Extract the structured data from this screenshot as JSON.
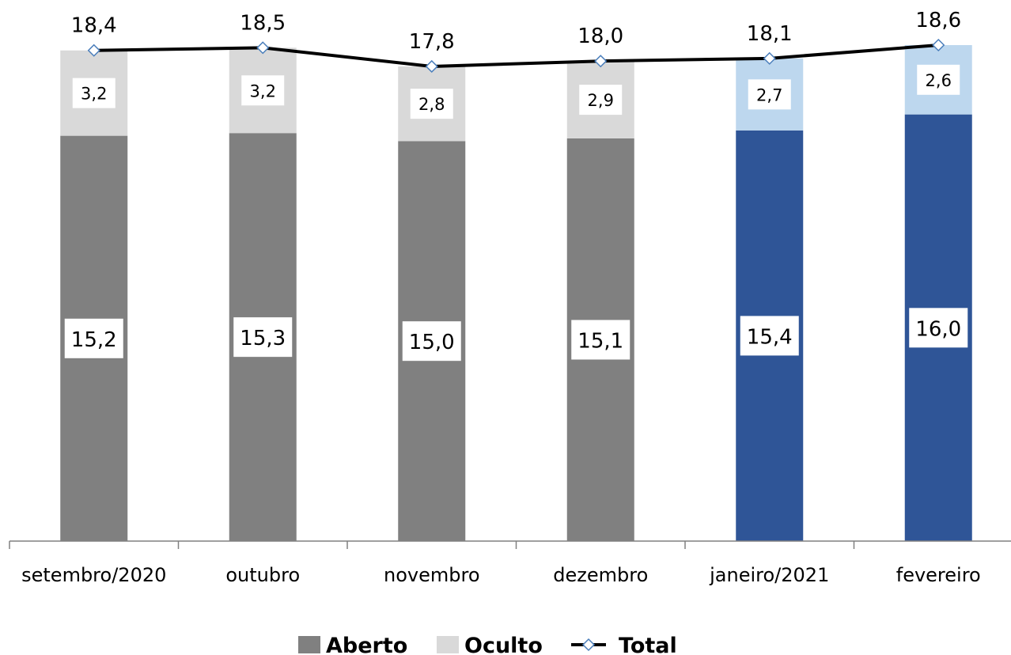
{
  "chart_data": {
    "type": "bar",
    "stacked": true,
    "categories": [
      "setembro/2020",
      "outubro",
      "novembro",
      "dezembro",
      "janeiro/2021",
      "fevereiro"
    ],
    "series": [
      {
        "name": "Aberto",
        "values": [
          15.2,
          15.3,
          15.0,
          15.1,
          15.4,
          16.0
        ],
        "labels": [
          "15,2",
          "15,3",
          "15,0",
          "15,1",
          "15,4",
          "16,0"
        ],
        "colors": [
          "#808080",
          "#808080",
          "#808080",
          "#808080",
          "#2f5597",
          "#2f5597"
        ]
      },
      {
        "name": "Oculto",
        "values": [
          3.2,
          3.2,
          2.8,
          2.9,
          2.7,
          2.6
        ],
        "labels": [
          "3,2",
          "3,2",
          "2,8",
          "2,9",
          "2,7",
          "2,6"
        ],
        "colors": [
          "#d9d9d9",
          "#d9d9d9",
          "#d9d9d9",
          "#d9d9d9",
          "#bdd7ee",
          "#bdd7ee"
        ]
      },
      {
        "name": "Total",
        "type": "line",
        "values": [
          18.4,
          18.5,
          17.8,
          18.0,
          18.1,
          18.6
        ],
        "labels": [
          "18,4",
          "18,5",
          "17,8",
          "18,0",
          "18,1",
          "18,6"
        ],
        "color": "#000000",
        "marker_color": "#4a7ebb"
      }
    ],
    "ylim": [
      0,
      18.6
    ],
    "grid": false,
    "legend": "bottom",
    "title": "",
    "xlabel": "",
    "ylabel": ""
  }
}
